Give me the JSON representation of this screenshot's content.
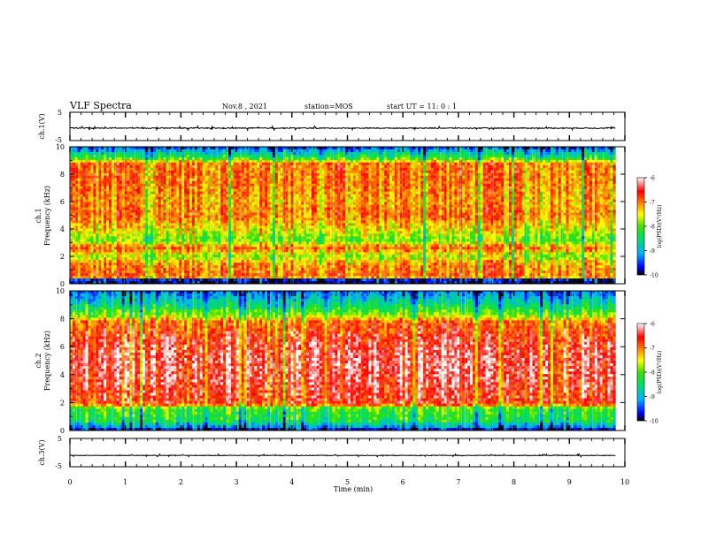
{
  "header": {
    "title": "VLF Spectra",
    "date": "Nov.8 , 2021",
    "station": "station=MOS",
    "start_ut": "start UT =  11: 0 : 1"
  },
  "chart_data": [
    {
      "type": "line",
      "panel": "ch1-waveform",
      "ylabel": "ch.1(V)",
      "yticks": [
        "5",
        "-5"
      ],
      "ylim": [
        -5,
        5
      ],
      "xlim": [
        0,
        10
      ],
      "data_end_min": 9.83,
      "series": [
        {
          "mean": -0.6,
          "noise": 0.35
        }
      ]
    },
    {
      "type": "heatmap",
      "panel": "ch1-spectrogram",
      "ylabel": "ch.1",
      "ylabel2": "Frequency (kHz)",
      "yticks": [
        "0",
        "2",
        "4",
        "6",
        "8",
        "10"
      ],
      "ylim": [
        0,
        10
      ],
      "xlim": [
        0,
        10
      ],
      "data_end_min": 9.83,
      "colorbar": {
        "label": "log(PSD)(V²/Hz)",
        "range": [
          -10,
          -6
        ],
        "ticks": [
          "-6",
          "-7",
          "-8",
          "-9",
          "-10"
        ]
      },
      "profile": [
        {
          "f_khz": 0.0,
          "log_psd": -9.8
        },
        {
          "f_khz": 0.3,
          "log_psd": -9.6
        },
        {
          "f_khz": 0.5,
          "log_psd": -6.8
        },
        {
          "f_khz": 1.5,
          "log_psd": -7.1
        },
        {
          "f_khz": 2.0,
          "log_psd": -7.7
        },
        {
          "f_khz": 2.6,
          "log_psd": -6.9
        },
        {
          "f_khz": 3.2,
          "log_psd": -7.9
        },
        {
          "f_khz": 3.8,
          "log_psd": -7.5
        },
        {
          "f_khz": 5.0,
          "log_psd": -6.9
        },
        {
          "f_khz": 6.0,
          "log_psd": -7.1
        },
        {
          "f_khz": 7.5,
          "log_psd": -6.9
        },
        {
          "f_khz": 8.8,
          "log_psd": -6.9
        },
        {
          "f_khz": 9.1,
          "log_psd": -8.0
        },
        {
          "f_khz": 9.6,
          "log_psd": -8.8
        },
        {
          "f_khz": 10.0,
          "log_psd": -9.5
        }
      ]
    },
    {
      "type": "heatmap",
      "panel": "ch2-spectrogram",
      "ylabel": "ch.2",
      "ylabel2": "Frequency (kHz)",
      "yticks": [
        "0",
        "2",
        "4",
        "6",
        "8",
        "10"
      ],
      "ylim": [
        0,
        10
      ],
      "xlim": [
        0,
        10
      ],
      "data_end_min": 9.83,
      "colorbar": {
        "label": "log(PSD)(V²/Hz)",
        "range": [
          -10,
          -6
        ],
        "ticks": [
          "-6",
          "-7",
          "-8",
          "-9",
          "-10"
        ]
      },
      "profile": [
        {
          "f_khz": 0.0,
          "log_psd": -9.8
        },
        {
          "f_khz": 0.3,
          "log_psd": -9.0
        },
        {
          "f_khz": 0.7,
          "log_psd": -8.3
        },
        {
          "f_khz": 1.6,
          "log_psd": -8.0
        },
        {
          "f_khz": 1.9,
          "log_psd": -6.6
        },
        {
          "f_khz": 3.5,
          "log_psd": -6.4
        },
        {
          "f_khz": 5.0,
          "log_psd": -6.3
        },
        {
          "f_khz": 6.5,
          "log_psd": -6.5
        },
        {
          "f_khz": 7.8,
          "log_psd": -6.9
        },
        {
          "f_khz": 8.2,
          "log_psd": -7.7
        },
        {
          "f_khz": 9.0,
          "log_psd": -8.5
        },
        {
          "f_khz": 10.0,
          "log_psd": -9.3
        }
      ]
    },
    {
      "type": "line",
      "panel": "ch3-waveform",
      "ylabel": "ch.3(V)",
      "yticks": [
        "5",
        "-5"
      ],
      "ylim": [
        -5,
        5
      ],
      "xlim": [
        0,
        10
      ],
      "data_end_min": 9.83,
      "series": [
        {
          "mean": -1.0,
          "noise": 0.25
        }
      ]
    }
  ],
  "xaxis": {
    "label": "Time (min)",
    "ticks": [
      "0",
      "1",
      "2",
      "3",
      "4",
      "5",
      "6",
      "7",
      "8",
      "9",
      "10"
    ]
  }
}
